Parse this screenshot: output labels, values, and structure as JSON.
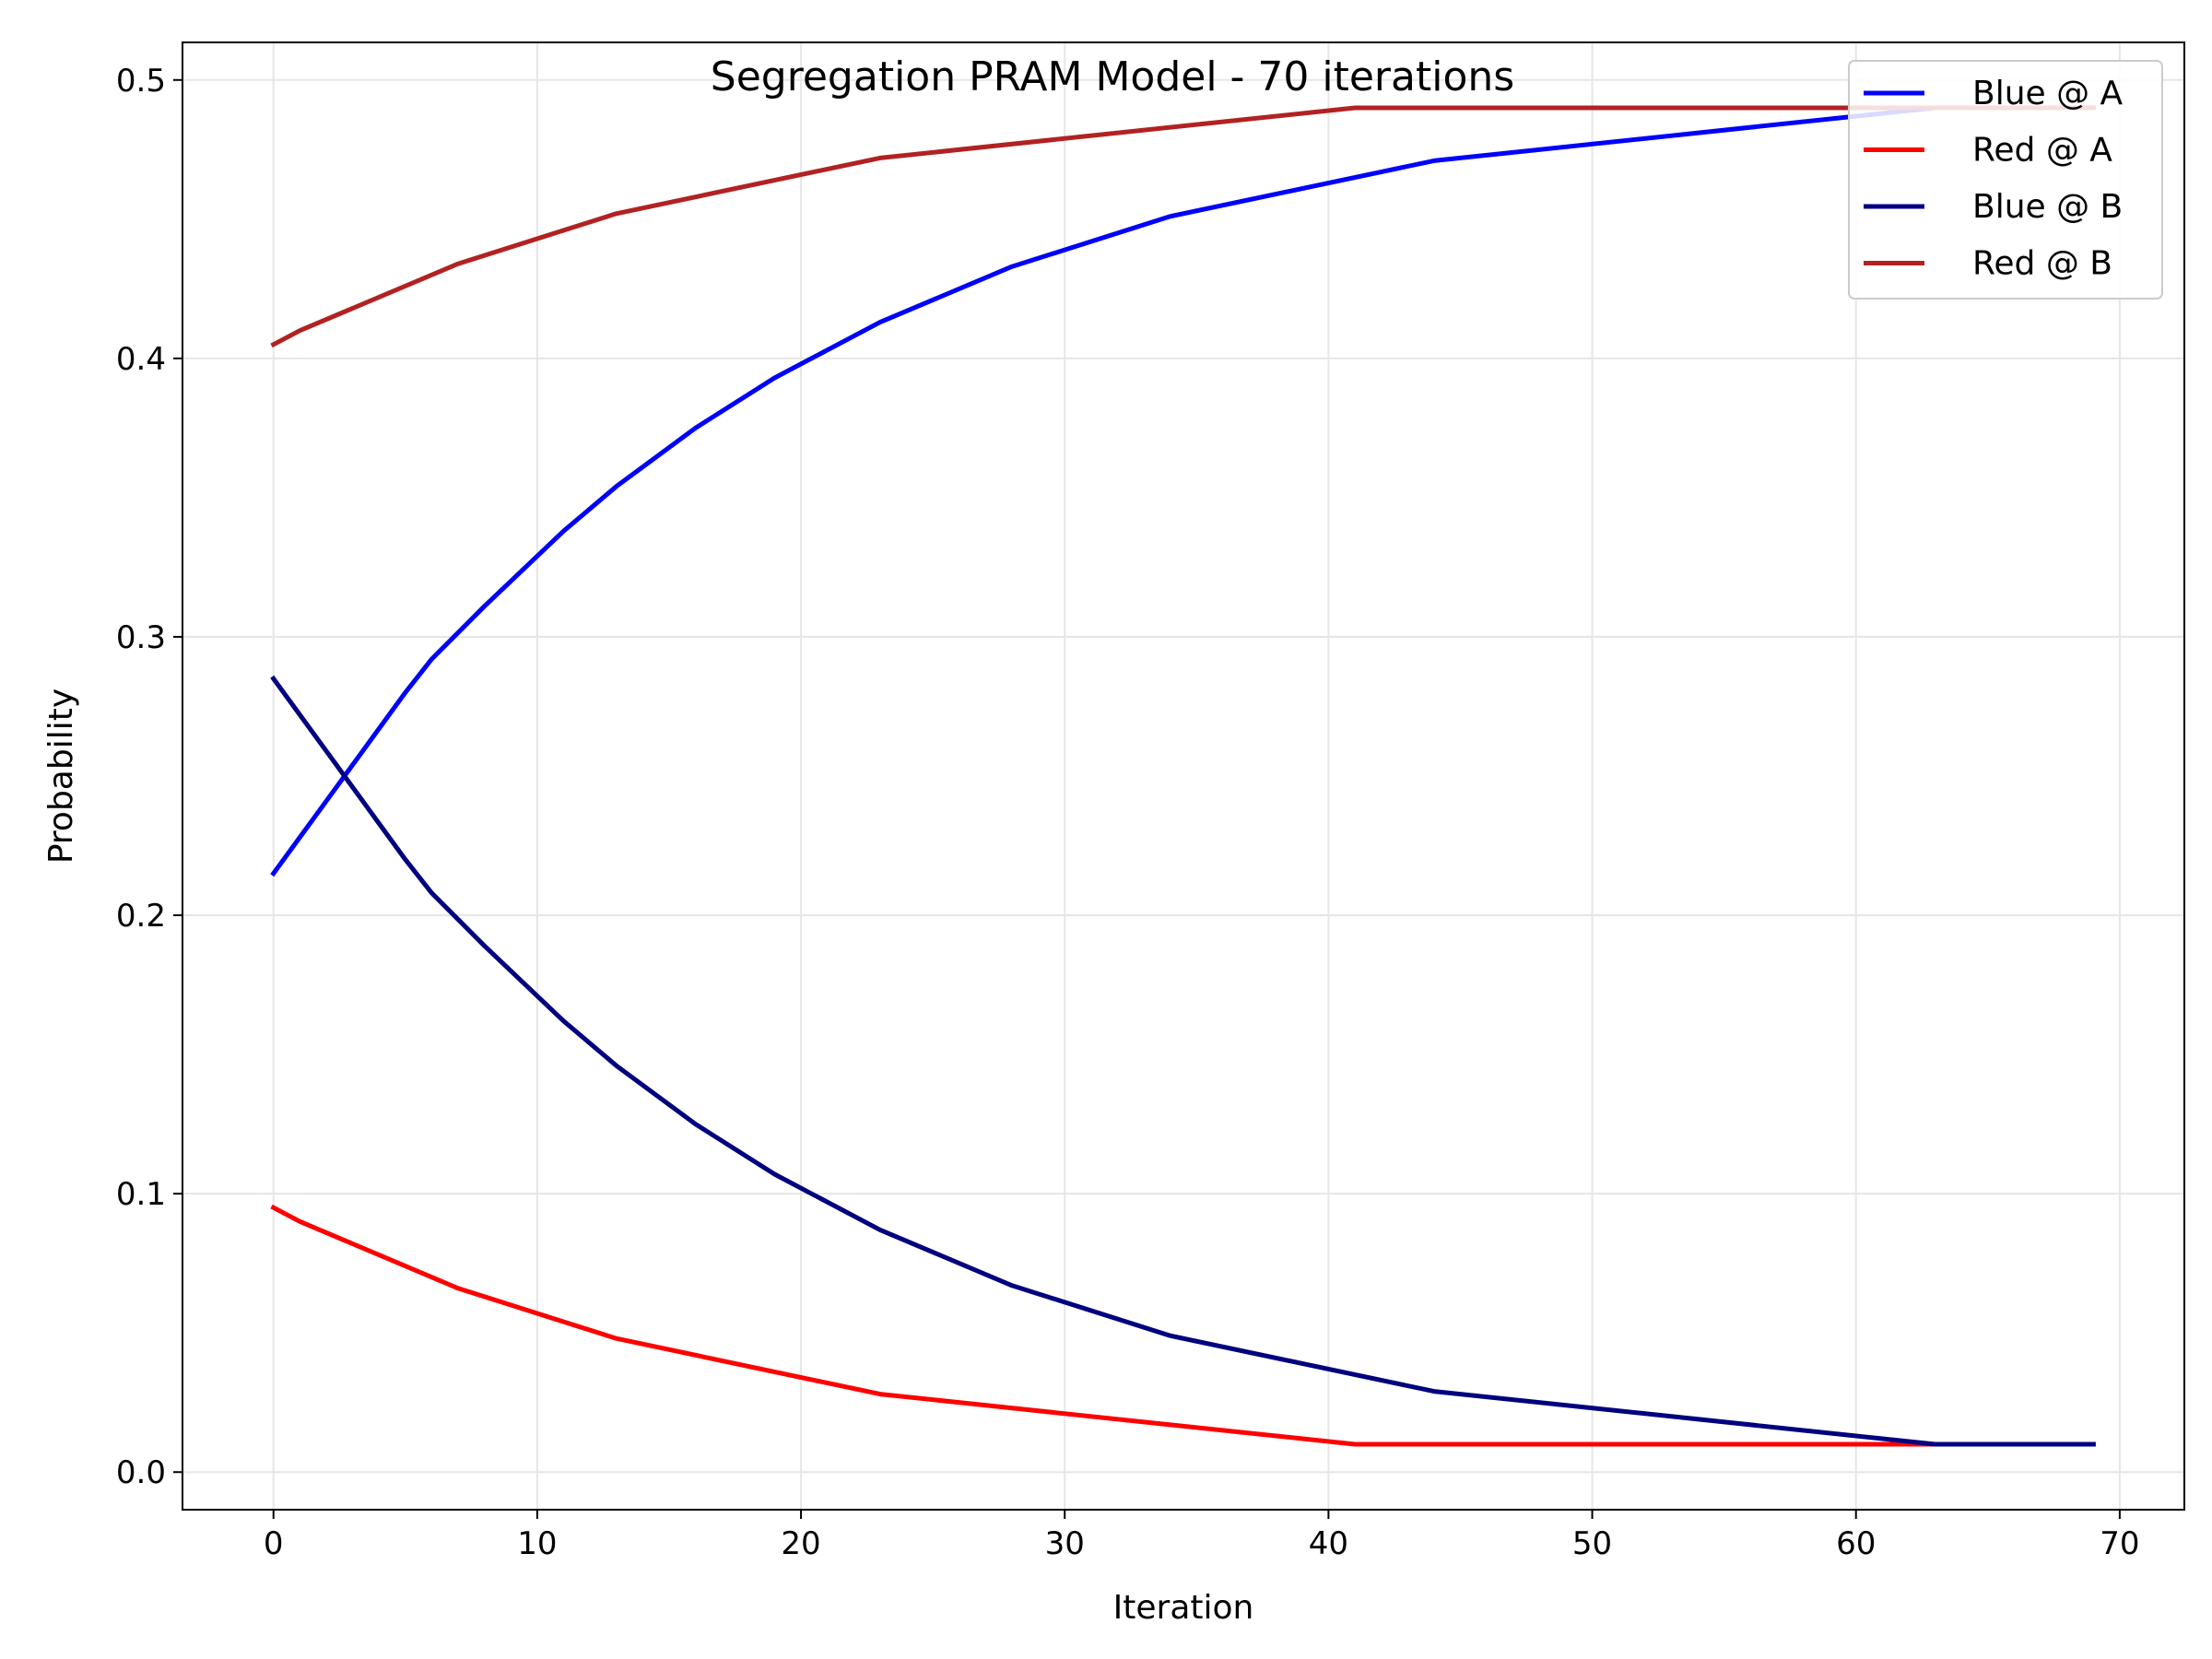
{
  "chart_data": {
    "type": "line",
    "title": "Segregation PRAM Model - 70 iterations",
    "xlabel": "Iteration",
    "ylabel": "Probability",
    "xlim": [
      -3.45,
      72.45
    ],
    "ylim": [
      -0.0135,
      0.5135
    ],
    "xticks": [
      0,
      10,
      20,
      30,
      40,
      50,
      60,
      70
    ],
    "xtick_labels": [
      "0",
      "10",
      "20",
      "30",
      "40",
      "50",
      "60",
      "70"
    ],
    "yticks": [
      0.0,
      0.1,
      0.2,
      0.3,
      0.4,
      0.5
    ],
    "ytick_labels": [
      "0.0",
      "0.1",
      "0.2",
      "0.3",
      "0.4",
      "0.5"
    ],
    "grid": true,
    "legend_position": "top-right",
    "series": [
      {
        "name": "Blue @ A",
        "color": "#0000ff",
        "x": [
          0,
          1,
          2,
          3,
          4,
          5,
          6,
          8,
          11,
          13,
          16,
          19,
          23,
          28,
          34,
          44,
          63,
          69
        ],
        "y": [
          0.215,
          0.228,
          0.241,
          0.254,
          0.267,
          0.28,
          0.292,
          0.311,
          0.338,
          0.354,
          0.375,
          0.393,
          0.413,
          0.433,
          0.451,
          0.471,
          0.49,
          0.49
        ]
      },
      {
        "name": "Red @ A",
        "color": "#ff0000",
        "x": [
          0,
          1,
          7,
          13,
          23,
          41,
          69
        ],
        "y": [
          0.095,
          0.09,
          0.066,
          0.048,
          0.028,
          0.01,
          0.01
        ]
      },
      {
        "name": "Blue @ B",
        "color": "#00007f",
        "x": [
          0,
          1,
          2,
          3,
          4,
          5,
          6,
          8,
          11,
          13,
          16,
          19,
          23,
          28,
          34,
          44,
          63,
          69
        ],
        "y": [
          0.285,
          0.272,
          0.259,
          0.246,
          0.233,
          0.22,
          0.208,
          0.189,
          0.162,
          0.146,
          0.125,
          0.107,
          0.087,
          0.067,
          0.049,
          0.029,
          0.01,
          0.01
        ]
      },
      {
        "name": "Red @ B",
        "color": "#b22222",
        "x": [
          0,
          1,
          7,
          13,
          23,
          41,
          69
        ],
        "y": [
          0.405,
          0.41,
          0.434,
          0.452,
          0.472,
          0.49,
          0.49
        ]
      }
    ]
  }
}
